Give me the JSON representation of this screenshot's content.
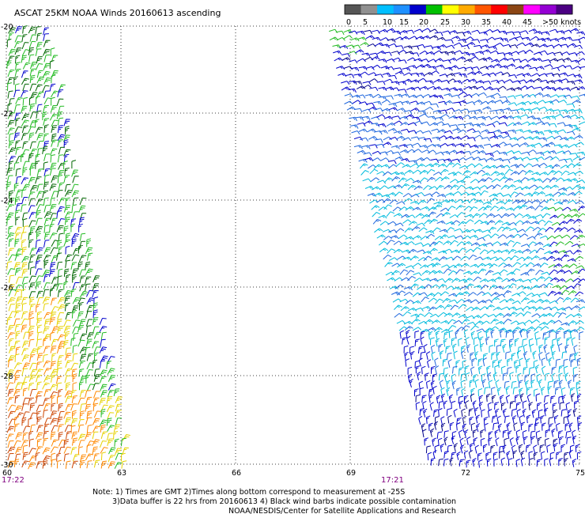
{
  "title": "ASCAT 25KM NOAA Winds 20160613 ascending",
  "legend": {
    "labels": [
      "0",
      "5",
      "10",
      "15",
      "20",
      "25",
      "30",
      "35",
      "40",
      "45",
      ">50 knots"
    ],
    "colors": [
      "#555555",
      "#909090",
      "#00bfff",
      "#1e90ff",
      "#0000cd",
      "#00c000",
      "#ffff00",
      "#ffaa00",
      "#ff5500",
      "#ff0000",
      "#8b4513",
      "#ff00ff",
      "#9400d3",
      "#4b0082"
    ]
  },
  "lat_labels": [
    "-20",
    "-22",
    "-24",
    "-26",
    "-28",
    "-30"
  ],
  "lon_labels": [
    "60",
    "63",
    "66",
    "69",
    "72",
    "75"
  ],
  "time_labels": [
    "17:22",
    "17:21"
  ],
  "notes": [
    "Note: 1) Times are GMT 2)Times along bottom correspond to measurement at -25S",
    "3)Data buffer is 22 hrs from 20160613 4) Black wind barbs indicate possible contamination",
    "NOAA/NESDIS/Center for Satellite Applications and Research"
  ],
  "barb_colors": {
    "green": "#22bb22",
    "dark_green": "#006600",
    "yellow": "#e6d200",
    "orange": "#ff8800",
    "dark_orange": "#cc4400",
    "blue": "#0000cc",
    "mid_blue": "#1e66dd",
    "cyan": "#00bbdd",
    "navy": "#000088"
  }
}
